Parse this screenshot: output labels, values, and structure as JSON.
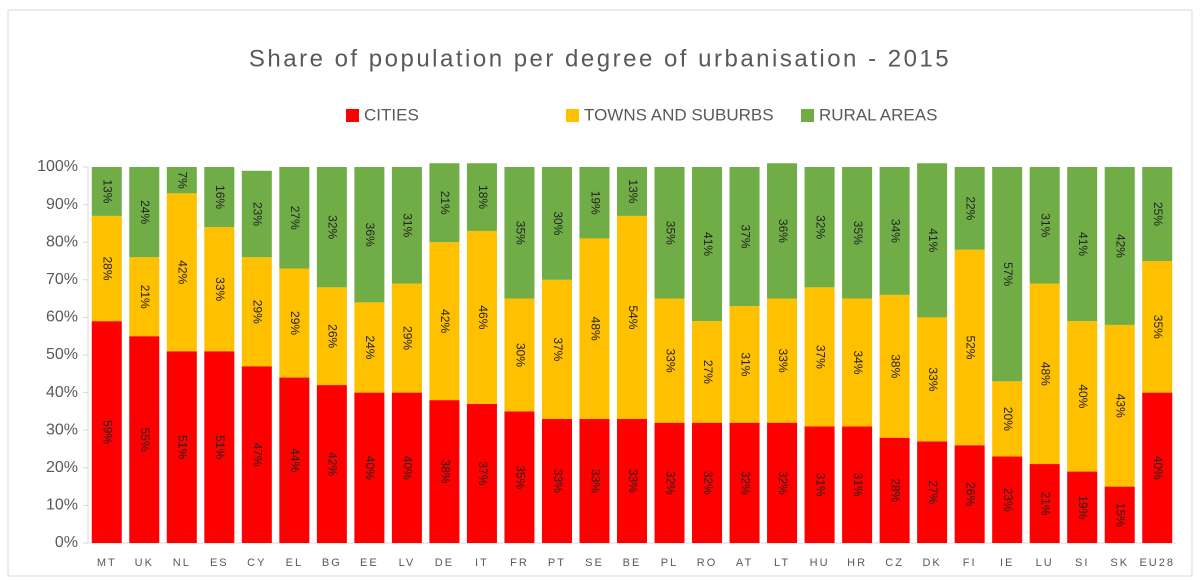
{
  "chart_data": {
    "type": "stacked_bar",
    "title": "Share of population per degree of urbanisation - 2015",
    "categories": [
      "MT",
      "UK",
      "NL",
      "ES",
      "CY",
      "EL",
      "BG",
      "EE",
      "LV",
      "DE",
      "IT",
      "FR",
      "PT",
      "SE",
      "BE",
      "PL",
      "RO",
      "AT",
      "LT",
      "HU",
      "HR",
      "CZ",
      "DK",
      "FI",
      "IE",
      "LU",
      "SI",
      "SK",
      "EU28"
    ],
    "series": [
      {
        "name": "CITIES",
        "color": "#ff0000",
        "values": [
          59,
          55,
          51,
          51,
          47,
          44,
          42,
          40,
          40,
          38,
          37,
          35,
          33,
          33,
          33,
          32,
          32,
          32,
          32,
          31,
          31,
          28,
          27,
          26,
          23,
          21,
          19,
          15,
          40
        ],
        "value_labels": [
          "59%",
          "55%",
          "51%",
          "51%",
          "47%",
          "44%",
          "42%",
          "40%",
          "40%",
          "38%",
          "37%",
          "35%",
          "33%",
          "33%",
          "33%",
          "32%",
          "32%",
          "32%",
          "32%",
          "31%",
          "31%",
          "28%",
          "27%",
          "26%",
          "23%",
          "21%",
          "19%",
          "15%",
          "40%"
        ]
      },
      {
        "name": "TOWNS AND SUBURBS",
        "color": "#ffc000",
        "values": [
          28,
          21,
          42,
          33,
          29,
          29,
          26,
          24,
          29,
          42,
          46,
          30,
          37,
          48,
          54,
          33,
          27,
          31,
          33,
          37,
          34,
          38,
          33,
          52,
          20,
          48,
          40,
          43,
          35
        ],
        "value_labels": [
          "28%",
          "21%",
          "42%",
          "33%",
          "29%",
          "29%",
          "26%",
          "24%",
          "29%",
          "42%",
          "46%",
          "30%",
          "37%",
          "48%",
          "54%",
          "33%",
          "27%",
          "31%",
          "33%",
          "37%",
          "34%",
          "38%",
          "33%",
          "52%",
          "20%",
          "48%",
          "40%",
          "43%",
          "35%"
        ]
      },
      {
        "name": "RURAL AREAS",
        "color": "#70ad47",
        "values": [
          13,
          24,
          7,
          16,
          23,
          27,
          32,
          36,
          31,
          21,
          18,
          35,
          30,
          19,
          13,
          35,
          41,
          37,
          36,
          32,
          35,
          34,
          41,
          22,
          57,
          31,
          41,
          42,
          25
        ],
        "value_labels": [
          "13%",
          "24%",
          "7%",
          "16%",
          "23%",
          "27%",
          "32%",
          "36%",
          "31%",
          "21%",
          "18%",
          "35%",
          "30%",
          "19%",
          "13%",
          "35%",
          "41%",
          "37%",
          "36%",
          "32%",
          "35%",
          "34%",
          "41%",
          "22%",
          "57%",
          "31%",
          "41%",
          "42%",
          "25%"
        ]
      }
    ],
    "ylim": [
      0,
      100
    ],
    "yticks": [
      {
        "value": 0,
        "label": "0%"
      },
      {
        "value": 10,
        "label": "10%"
      },
      {
        "value": 20,
        "label": "20%"
      },
      {
        "value": 30,
        "label": "30%"
      },
      {
        "value": 40,
        "label": "40%"
      },
      {
        "value": 50,
        "label": "50%"
      },
      {
        "value": 60,
        "label": "60%"
      },
      {
        "value": 70,
        "label": "70%"
      },
      {
        "value": 80,
        "label": "80%"
      },
      {
        "value": 90,
        "label": "90%"
      },
      {
        "value": 100,
        "label": "100%"
      }
    ],
    "legend": "top"
  }
}
